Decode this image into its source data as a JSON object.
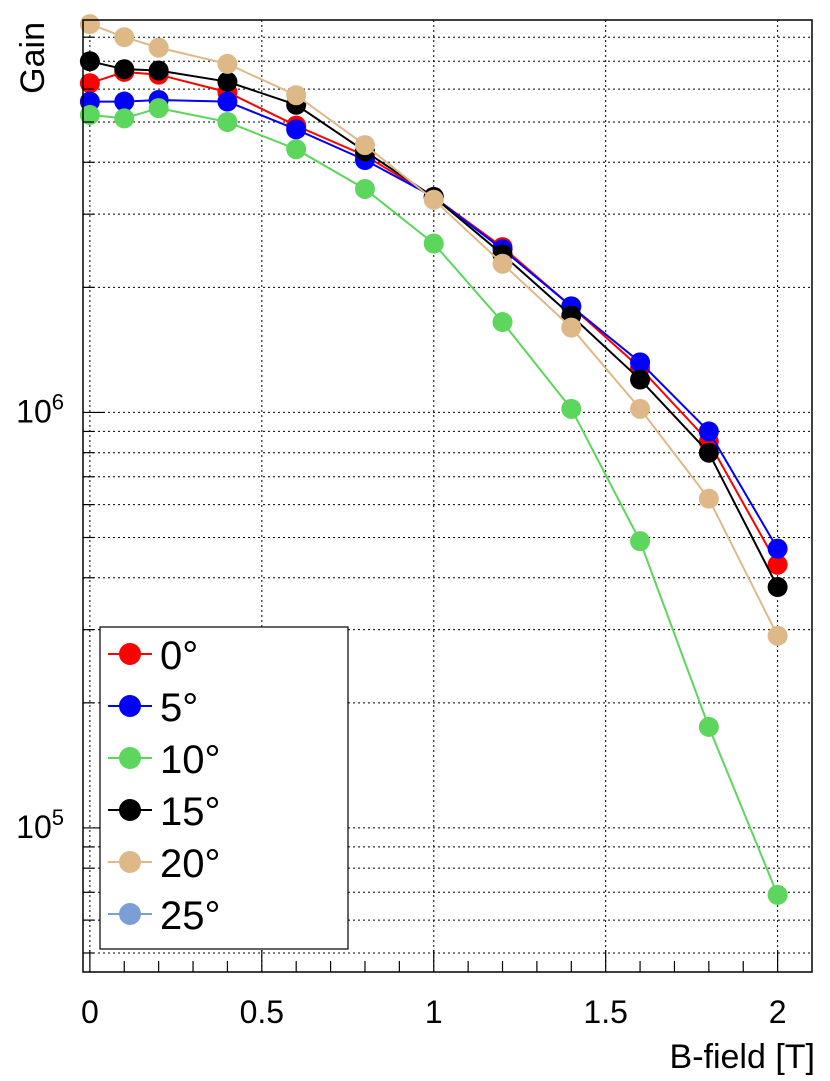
{
  "chart_data": {
    "type": "line",
    "title": "",
    "xlabel": "B-field [T]",
    "ylabel": "Gain",
    "xlim": [
      -0.02,
      2.1
    ],
    "ylim": [
      45000,
      8800000
    ],
    "yscale": "log",
    "grid": true,
    "legend_position": "bottom-left",
    "x_ticks": [
      "0",
      "0.5",
      "1",
      "1.5",
      "2"
    ],
    "y_ticks": [
      {
        "base": "10",
        "exp": "5",
        "value": 100000
      },
      {
        "base": "10",
        "exp": "6",
        "value": 1000000
      }
    ],
    "series": [
      {
        "name": "0°",
        "color": "#ff0000",
        "x": [
          0,
          0.1,
          0.2,
          0.4,
          0.6,
          0.8,
          1.0,
          1.2,
          1.4,
          1.6,
          1.8,
          2.0
        ],
        "y": [
          6200000,
          6600000,
          6500000,
          5900000,
          4900000,
          4150000,
          3300000,
          2500000,
          1800000,
          1280000,
          850000,
          430000
        ]
      },
      {
        "name": "5°",
        "color": "#0000ff",
        "x": [
          0,
          0.1,
          0.2,
          0.4,
          0.6,
          0.8,
          1.0,
          1.2,
          1.4,
          1.6,
          1.8,
          2.0
        ],
        "y": [
          5600000,
          5600000,
          5650000,
          5600000,
          4800000,
          4050000,
          3300000,
          2470000,
          1800000,
          1320000,
          900000,
          470000
        ]
      },
      {
        "name": "10°",
        "color": "#5cd65c",
        "x": [
          0,
          0.1,
          0.2,
          0.4,
          0.6,
          0.8,
          1.0,
          1.2,
          1.4,
          1.6,
          1.8,
          2.0
        ],
        "y": [
          5200000,
          5100000,
          5400000,
          5000000,
          4300000,
          3450000,
          2550000,
          1650000,
          1020000,
          490000,
          175000,
          69000
        ]
      },
      {
        "name": "15°",
        "color": "#000000",
        "x": [
          0,
          0.1,
          0.2,
          0.4,
          0.6,
          0.8,
          1.0,
          1.2,
          1.4,
          1.6,
          1.8,
          2.0
        ],
        "y": [
          7000000,
          6700000,
          6650000,
          6250000,
          5500000,
          4250000,
          3300000,
          2400000,
          1710000,
          1200000,
          800000,
          380000
        ]
      },
      {
        "name": "20°",
        "color": "#deb887",
        "x": [
          0,
          0.1,
          0.2,
          0.4,
          0.6,
          0.8,
          1.0,
          1.2,
          1.4,
          1.6,
          1.8,
          2.0
        ],
        "y": [
          8600000,
          8000000,
          7550000,
          6900000,
          5800000,
          4400000,
          3250000,
          2280000,
          1600000,
          1020000,
          620000,
          290000
        ]
      },
      {
        "name": "25°",
        "color": "#7b9fd4",
        "x": [],
        "y": []
      }
    ]
  }
}
